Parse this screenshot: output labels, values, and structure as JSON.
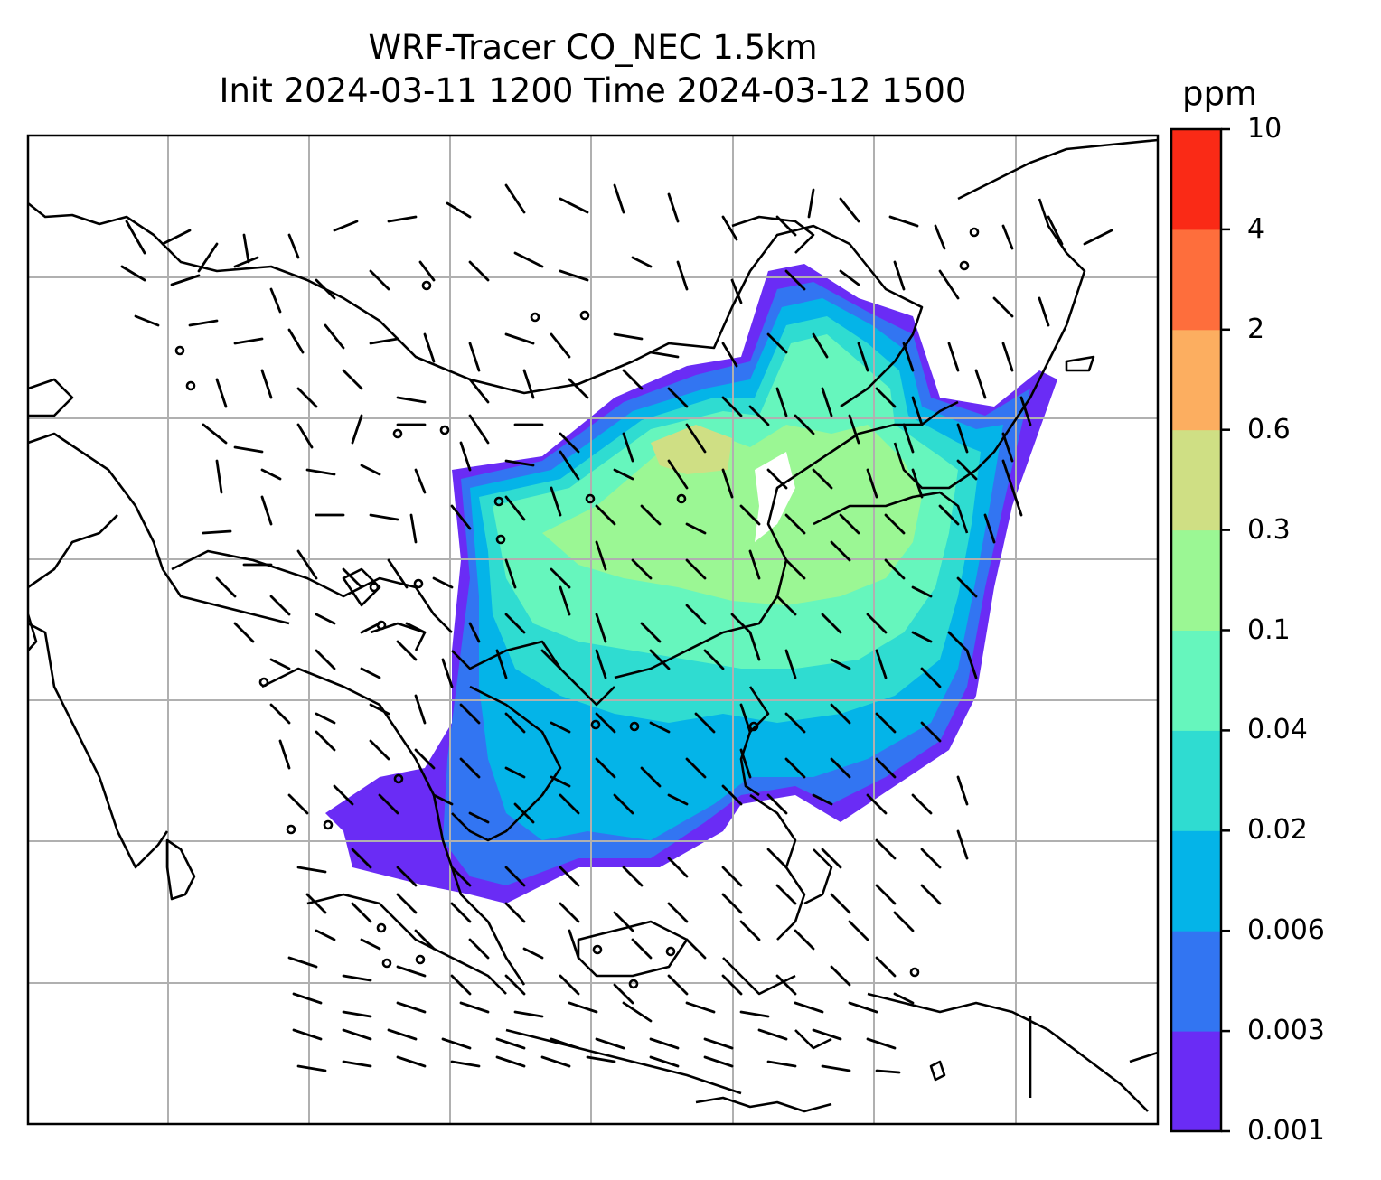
{
  "title": {
    "line1": "WRF-Tracer CO_NEC 1.5km",
    "line2": "Init 2024-03-11 1200 Time 2024-03-12 1500"
  },
  "colorbar": {
    "unit": "ppm",
    "levels": [
      "0.001",
      "0.003",
      "0.006",
      "0.02",
      "0.04",
      "0.1",
      "0.3",
      "0.6",
      "2",
      "4",
      "10"
    ],
    "colors": [
      "#6a2cf5",
      "#3275f2",
      "#04b4e8",
      "#2fdcd1",
      "#66f6bd",
      "#9bf794",
      "#cfdf84",
      "#fcae60",
      "#fe6e3c",
      "#fa2a16"
    ]
  },
  "map": {
    "coastline_color": "#000000",
    "gridline_color": "#b0b0b0",
    "wind_barb_color": "#000000"
  }
}
